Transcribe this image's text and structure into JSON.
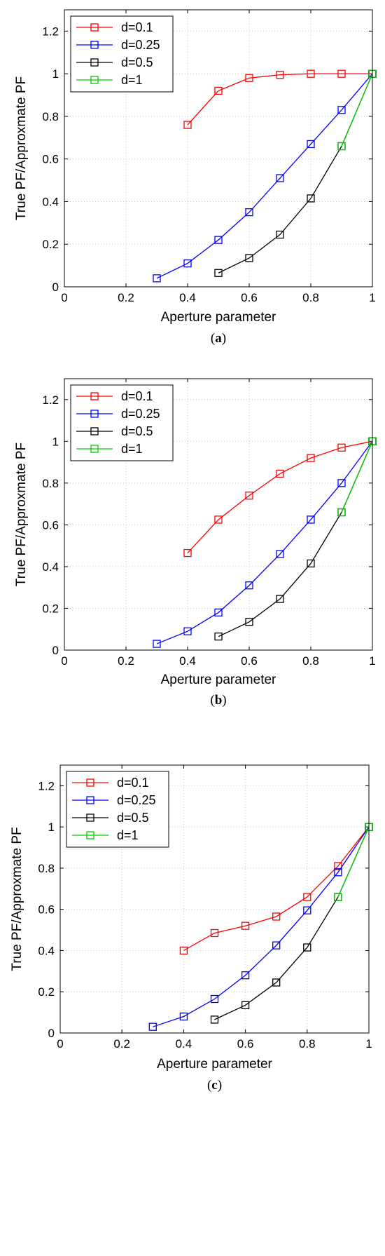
{
  "chart_data": [
    {
      "type": "line",
      "caption_open": "(",
      "caption_letter": "a",
      "caption_close": ")",
      "xlabel": "Aperture parameter",
      "ylabel": "True PF/Approxmate PF",
      "xlim": [
        0,
        1
      ],
      "ylim": [
        0,
        1.3
      ],
      "xticks": [
        "0",
        "0.2",
        "0.4",
        "0.6",
        "0.8",
        "1"
      ],
      "yticks": [
        "0",
        "0.2",
        "0.4",
        "0.6",
        "0.8",
        "1",
        "1.2"
      ],
      "grid": true,
      "legend_position": "top-left",
      "series": [
        {
          "name": "d=0.1",
          "color": "#ff0000",
          "x": [
            0.4,
            0.5,
            0.6,
            0.7,
            0.8,
            0.9,
            1.0
          ],
          "y": [
            0.76,
            0.92,
            0.98,
            0.995,
            1.0,
            1.0,
            1.0
          ]
        },
        {
          "name": "d=0.25",
          "color": "#0000ff",
          "x": [
            0.3,
            0.4,
            0.5,
            0.6,
            0.7,
            0.8,
            0.9,
            1.0
          ],
          "y": [
            0.04,
            0.11,
            0.22,
            0.35,
            0.51,
            0.67,
            0.83,
            1.0
          ]
        },
        {
          "name": "d=0.5",
          "color": "#000000",
          "x": [
            0.5,
            0.6,
            0.7,
            0.8,
            0.9,
            1.0
          ],
          "y": [
            0.065,
            0.135,
            0.245,
            0.415,
            0.66,
            1.0
          ]
        },
        {
          "name": "d=1",
          "color": "#00cc00",
          "x": [
            0.9,
            1.0
          ],
          "y": [
            0.66,
            1.0
          ]
        }
      ]
    },
    {
      "type": "line",
      "caption_open": "(",
      "caption_letter": "b",
      "caption_close": ")",
      "xlabel": "Aperture parameter",
      "ylabel": "True PF/Approxmate PF",
      "xlim": [
        0,
        1
      ],
      "ylim": [
        0,
        1.3
      ],
      "xticks": [
        "0",
        "0.2",
        "0.4",
        "0.6",
        "0.8",
        "1"
      ],
      "yticks": [
        "0",
        "0.2",
        "0.4",
        "0.6",
        "0.8",
        "1",
        "1.2"
      ],
      "grid": true,
      "legend_position": "top-left",
      "series": [
        {
          "name": "d=0.1",
          "color": "#ff0000",
          "x": [
            0.4,
            0.5,
            0.6,
            0.7,
            0.8,
            0.9,
            1.0
          ],
          "y": [
            0.465,
            0.625,
            0.74,
            0.845,
            0.92,
            0.97,
            1.0
          ]
        },
        {
          "name": "d=0.25",
          "color": "#0000ff",
          "x": [
            0.3,
            0.4,
            0.5,
            0.6,
            0.7,
            0.8,
            0.9,
            1.0
          ],
          "y": [
            0.03,
            0.09,
            0.18,
            0.31,
            0.46,
            0.625,
            0.8,
            1.0
          ]
        },
        {
          "name": "d=0.5",
          "color": "#000000",
          "x": [
            0.5,
            0.6,
            0.7,
            0.8,
            0.9,
            1.0
          ],
          "y": [
            0.065,
            0.135,
            0.245,
            0.415,
            0.66,
            1.0
          ]
        },
        {
          "name": "d=1",
          "color": "#00cc00",
          "x": [
            0.9,
            1.0
          ],
          "y": [
            0.66,
            1.0
          ]
        }
      ]
    },
    {
      "type": "line",
      "caption_open": "(",
      "caption_letter": "c",
      "caption_close": ")",
      "xlabel": "Aperture parameter",
      "ylabel": "True PF/Approxmate PF",
      "xlim": [
        0,
        1
      ],
      "ylim": [
        0,
        1.3
      ],
      "xticks": [
        "0",
        "0.2",
        "0.4",
        "0.6",
        "0.8",
        "1"
      ],
      "yticks": [
        "0",
        "0.2",
        "0.4",
        "0.6",
        "0.8",
        "1",
        "1.2"
      ],
      "grid": true,
      "legend_position": "top-left",
      "series": [
        {
          "name": "d=0.1",
          "color": "#ff0000",
          "x": [
            0.4,
            0.5,
            0.6,
            0.7,
            0.8,
            0.9,
            1.0
          ],
          "y": [
            0.4,
            0.485,
            0.52,
            0.565,
            0.66,
            0.81,
            1.0
          ]
        },
        {
          "name": "d=0.25",
          "color": "#0000ff",
          "x": [
            0.3,
            0.4,
            0.5,
            0.6,
            0.7,
            0.8,
            0.9,
            1.0
          ],
          "y": [
            0.03,
            0.08,
            0.165,
            0.28,
            0.425,
            0.595,
            0.78,
            1.0
          ]
        },
        {
          "name": "d=0.5",
          "color": "#000000",
          "x": [
            0.5,
            0.6,
            0.7,
            0.8,
            0.9,
            1.0
          ],
          "y": [
            0.065,
            0.135,
            0.245,
            0.415,
            0.66,
            1.0
          ]
        },
        {
          "name": "d=1",
          "color": "#00cc00",
          "x": [
            0.9,
            1.0
          ],
          "y": [
            0.66,
            1.0
          ]
        }
      ]
    }
  ]
}
